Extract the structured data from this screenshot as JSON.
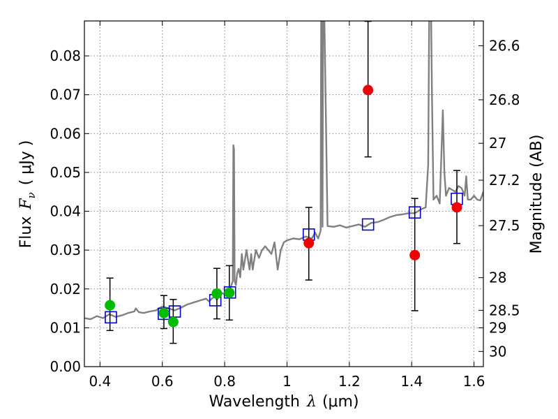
{
  "chart_data": {
    "type": "scatter",
    "xlabel": "Wavelength",
    "xlabel_symbol": "λ",
    "xlabel_unit": "(μm)",
    "ylabel": "Flux",
    "ylabel_symbol": "F",
    "ylabel_subscript": "ν",
    "ylabel_unit": "( μJy )",
    "y2label": "Magnitude (AB)",
    "xlim": [
      0.35,
      1.63
    ],
    "ylim": [
      0.0,
      0.089
    ],
    "grid": true,
    "x_ticks": [
      0.4,
      0.6,
      0.8,
      1.0,
      1.2,
      1.4,
      1.6
    ],
    "x_tick_labels": [
      "0.4",
      "0.6",
      "0.8",
      "1",
      "1.2",
      "1.4",
      "1.6"
    ],
    "y_ticks": [
      0.0,
      0.01,
      0.02,
      0.03,
      0.04,
      0.05,
      0.06,
      0.07,
      0.08
    ],
    "y_tick_labels": [
      "0.00",
      "0.01",
      "0.02",
      "0.03",
      "0.04",
      "0.05",
      "0.06",
      "0.07",
      "0.08"
    ],
    "y2_ticks": [
      {
        "label": "26.6",
        "flux": 0.0826
      },
      {
        "label": "26.8",
        "flux": 0.0687
      },
      {
        "label": "27",
        "flux": 0.0575
      },
      {
        "label": "27.2",
        "flux": 0.048
      },
      {
        "label": "27.5",
        "flux": 0.0363
      },
      {
        "label": "28",
        "flux": 0.0229
      },
      {
        "label": "28.5",
        "flux": 0.0145
      },
      {
        "label": "29",
        "flux": 0.01
      },
      {
        "label": "30",
        "flux": 0.0039
      }
    ],
    "colors": {
      "model": "#808080",
      "green_points": "#00bb00",
      "red_points": "#ee0000",
      "model_squares": "#0000cc",
      "error_bars": "#000000",
      "grid": "#888888"
    },
    "series": [
      {
        "name": "model spectrum",
        "kind": "line",
        "x": [
          0.35,
          0.37,
          0.39,
          0.41,
          0.43,
          0.45,
          0.47,
          0.49,
          0.51,
          0.515,
          0.525,
          0.54,
          0.56,
          0.58,
          0.6,
          0.62,
          0.64,
          0.66,
          0.68,
          0.7,
          0.72,
          0.74,
          0.75,
          0.76,
          0.77,
          0.775,
          0.785,
          0.79,
          0.8,
          0.815,
          0.826,
          0.828,
          0.83,
          0.832,
          0.836,
          0.84,
          0.845,
          0.85,
          0.855,
          0.86,
          0.87,
          0.88,
          0.885,
          0.89,
          0.9,
          0.91,
          0.92,
          0.93,
          0.94,
          0.95,
          0.96,
          0.97,
          0.98,
          0.99,
          1.0,
          1.02,
          1.04,
          1.06,
          1.08,
          1.09,
          1.1,
          1.108,
          1.11,
          1.112,
          1.114,
          1.116,
          1.118,
          1.13,
          1.15,
          1.17,
          1.19,
          1.21,
          1.23,
          1.25,
          1.27,
          1.29,
          1.31,
          1.33,
          1.35,
          1.37,
          1.39,
          1.41,
          1.43,
          1.445,
          1.453,
          1.457,
          1.461,
          1.465,
          1.47,
          1.48,
          1.49,
          1.495,
          1.5,
          1.505,
          1.51,
          1.52,
          1.53,
          1.54,
          1.55,
          1.56,
          1.57,
          1.575,
          1.58,
          1.59,
          1.6,
          1.61,
          1.62,
          1.63
        ],
        "y": [
          0.0125,
          0.0122,
          0.013,
          0.0125,
          0.0135,
          0.0128,
          0.0132,
          0.0138,
          0.0142,
          0.015,
          0.014,
          0.0138,
          0.0142,
          0.0145,
          0.0155,
          0.015,
          0.0145,
          0.0152,
          0.016,
          0.0165,
          0.017,
          0.0175,
          0.0168,
          0.0176,
          0.018,
          0.0172,
          0.0184,
          0.019,
          0.0186,
          0.0194,
          0.022,
          0.057,
          0.056,
          0.022,
          0.021,
          0.024,
          0.0252,
          0.023,
          0.029,
          0.025,
          0.03,
          0.025,
          0.029,
          0.025,
          0.03,
          0.028,
          0.03,
          0.031,
          0.03,
          0.029,
          0.032,
          0.025,
          0.03,
          0.032,
          0.0325,
          0.033,
          0.0328,
          0.0335,
          0.033,
          0.0345,
          0.033,
          0.035,
          0.1,
          0.1,
          0.036,
          0.1,
          0.1,
          0.0362,
          0.036,
          0.0364,
          0.0358,
          0.0362,
          0.0366,
          0.036,
          0.037,
          0.0372,
          0.0378,
          0.0385,
          0.039,
          0.0392,
          0.0395,
          0.0395,
          0.0405,
          0.041,
          0.052,
          0.1,
          0.1,
          0.07,
          0.043,
          0.044,
          0.042,
          0.054,
          0.066,
          0.05,
          0.044,
          0.046,
          0.0455,
          0.045,
          0.0465,
          0.046,
          0.044,
          0.049,
          0.043,
          0.043,
          0.044,
          0.043,
          0.0428,
          0.045
        ]
      },
      {
        "name": "green photometry",
        "kind": "points",
        "x": [
          0.432,
          0.605,
          0.635,
          0.775,
          0.815
        ],
        "y": [
          0.0158,
          0.0138,
          0.0115,
          0.0188,
          0.019
        ],
        "yerr_low": [
          0.0065,
          0.004,
          0.0055,
          0.0065,
          0.007
        ],
        "yerr_high": [
          0.007,
          0.0045,
          0.0058,
          0.0065,
          0.007
        ]
      },
      {
        "name": "red photometry",
        "kind": "points",
        "x": [
          1.07,
          1.26,
          1.41,
          1.545
        ],
        "y": [
          0.0318,
          0.0712,
          0.0287,
          0.041
        ],
        "yerr_low": [
          0.0095,
          0.0172,
          0.0143,
          0.0093
        ],
        "yerr_high": [
          0.0092,
          0.0177,
          0.0146,
          0.0095
        ]
      },
      {
        "name": "model photometry",
        "kind": "squares",
        "x": [
          0.435,
          0.605,
          0.64,
          0.77,
          0.817,
          1.07,
          1.26,
          1.41,
          1.545
        ],
        "y": [
          0.0127,
          0.0136,
          0.0142,
          0.0171,
          0.0191,
          0.034,
          0.0366,
          0.0397,
          0.0432
        ]
      }
    ]
  }
}
